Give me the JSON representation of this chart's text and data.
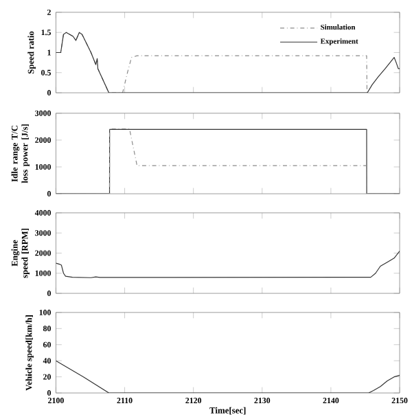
{
  "chart_data": [
    {
      "type": "line",
      "ylabel": "Speed  ratio",
      "xlim": [
        2100,
        2150
      ],
      "xticks": [
        2100,
        2110,
        2120,
        2130,
        2140,
        2150
      ],
      "ylim": [
        0,
        2
      ],
      "yticks": [
        0,
        0.5,
        1,
        1.5,
        2
      ],
      "tick_labels": "y",
      "legend": "top right",
      "series": [
        {
          "name": "Simulation",
          "color": "#8a8a8a",
          "line_style": "dashdot",
          "x": [
            2100,
            2100.7,
            2101.1,
            2101.5,
            2102.5,
            2102.9,
            2103.4,
            2103.8,
            2105.1,
            2105.8,
            2106,
            2106.1,
            2107.7,
            2109.7,
            2110.4,
            2111,
            2111.8,
            2145.2,
            2145.25
          ],
          "values": [
            1.0,
            1.0,
            1.45,
            1.5,
            1.4,
            1.3,
            1.5,
            1.45,
            1.0,
            0.7,
            0.85,
            0.6,
            0,
            0,
            0.5,
            0.88,
            0.92,
            0.92,
            0
          ]
        },
        {
          "name": "Experiment",
          "color": "#333333",
          "line_style": "solid",
          "x": [
            2100,
            2100.7,
            2101.1,
            2101.5,
            2102.5,
            2102.9,
            2103.4,
            2103.8,
            2105.1,
            2105.8,
            2106,
            2106.1,
            2107.7,
            2145.3,
            2146,
            2146.9,
            2147.9,
            2149.2,
            2149.5,
            2149.8,
            2150
          ],
          "values": [
            1.0,
            1.0,
            1.45,
            1.5,
            1.4,
            1.3,
            1.5,
            1.45,
            1.0,
            0.7,
            0.85,
            0.6,
            0,
            0,
            0.2,
            0.4,
            0.6,
            0.88,
            0.75,
            0.6,
            0.6
          ]
        }
      ]
    },
    {
      "type": "line",
      "ylabel": "Idle range T/C loss power [J/s]",
      "xlim": [
        2100,
        2150
      ],
      "xticks": [
        2100,
        2110,
        2120,
        2130,
        2140,
        2150
      ],
      "ylim": [
        0,
        3000
      ],
      "yticks": [
        0,
        1000,
        2000,
        3000
      ],
      "tick_labels": "y",
      "series": [
        {
          "color": "#333333",
          "line_style": "solid",
          "x": [
            2100,
            2107.8,
            2107.81,
            2145.2,
            2145.21,
            2150
          ],
          "values": [
            0,
            0,
            2400,
            2400,
            0,
            0
          ]
        },
        {
          "color": "#8a8a8a",
          "line_style": "dashdot",
          "x": [
            2100,
            2107.8,
            2107.81,
            2110.7,
            2111.8,
            2145.2,
            2145.21,
            2150
          ],
          "values": [
            0,
            0,
            2420,
            2420,
            1050,
            1050,
            0,
            0
          ]
        }
      ]
    },
    {
      "type": "line",
      "ylabel": "Engine speed [RPM]",
      "xlim": [
        2100,
        2150
      ],
      "xticks": [
        2100,
        2110,
        2120,
        2130,
        2140,
        2150
      ],
      "ylim": [
        0,
        4000
      ],
      "yticks": [
        0,
        1000,
        2000,
        3000,
        4000
      ],
      "tick_labels": "y",
      "series": [
        {
          "color": "#333333",
          "line_style": "solid",
          "x": [
            2100,
            2100.5,
            2100.8,
            2101.1,
            2101.4,
            2102.4,
            2105.1,
            2105.8,
            2106.4,
            2145.8,
            2146.5,
            2147.2,
            2148.2,
            2149.2,
            2150
          ],
          "values": [
            1500,
            1450,
            1400,
            1000,
            850,
            800,
            780,
            820,
            790,
            800,
            1000,
            1350,
            1550,
            1750,
            2100
          ]
        }
      ]
    },
    {
      "type": "line",
      "xlabel": "Time[sec]",
      "ylabel": "Vehicle speed[km/h]",
      "xlim": [
        2100,
        2150
      ],
      "xticks": [
        2100,
        2110,
        2120,
        2130,
        2140,
        2150
      ],
      "ylim": [
        0,
        100
      ],
      "yticks": [
        0,
        20,
        40,
        60,
        80,
        100
      ],
      "series": [
        {
          "color": "#333333",
          "line_style": "solid",
          "x": [
            2100,
            2104,
            2107.7,
            2145.5,
            2146.2,
            2147.2,
            2148.2,
            2149.2,
            2150
          ],
          "values": [
            40,
            20,
            0,
            0,
            3,
            8,
            15,
            20,
            22
          ]
        }
      ]
    }
  ]
}
